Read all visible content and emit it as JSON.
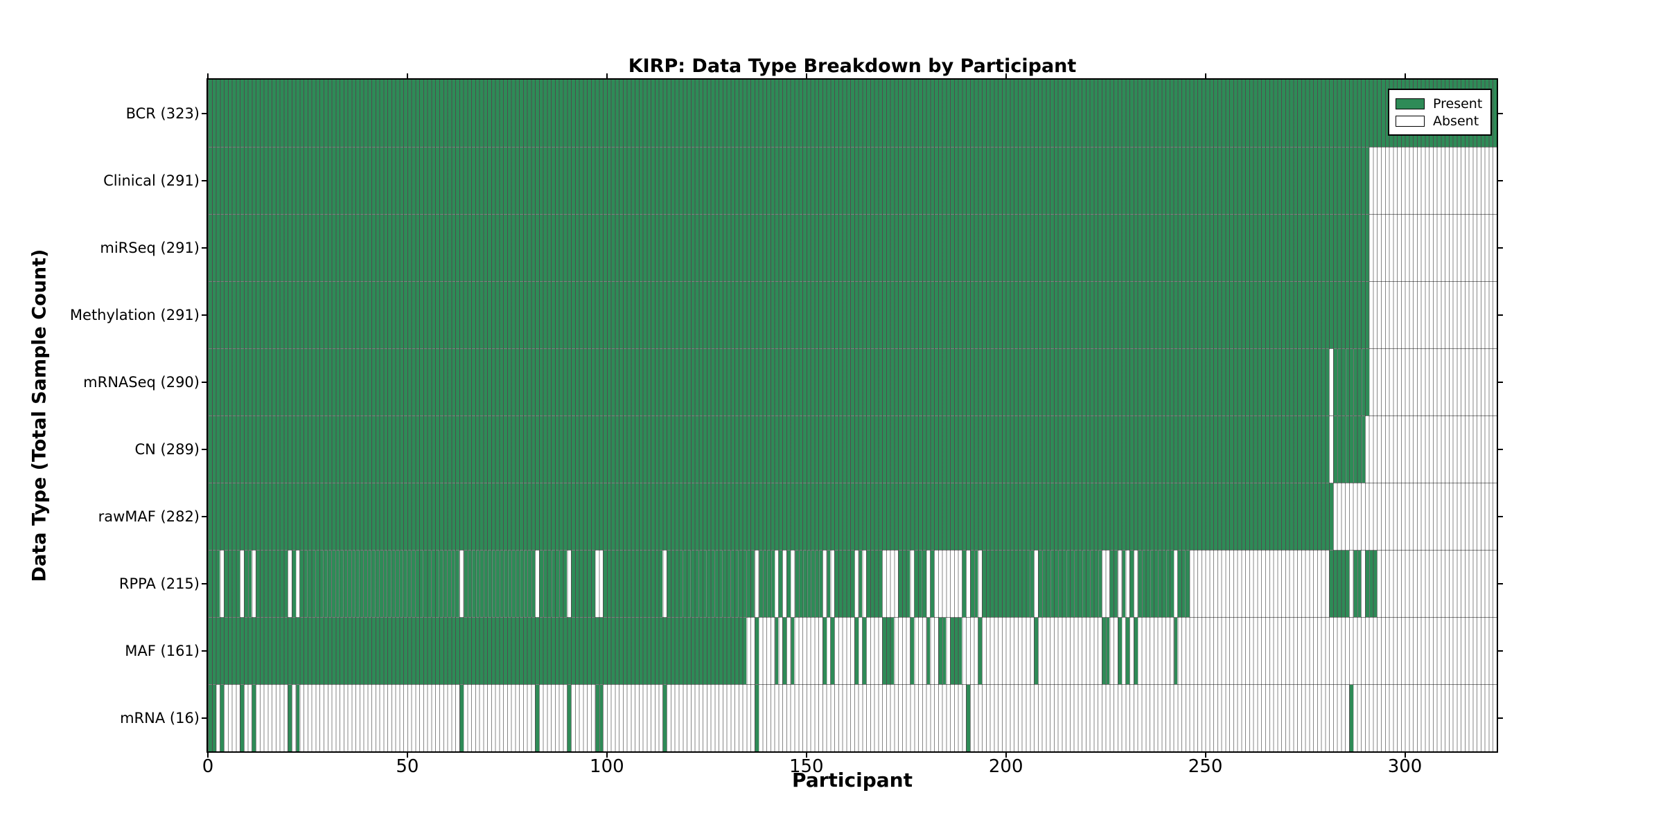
{
  "chart_data": {
    "type": "heatmap",
    "title": "KIRP: Data Type Breakdown by Participant",
    "xlabel": "Participant",
    "ylabel": "Data Type (Total Sample Count)",
    "x_max": 323,
    "x_ticks": [
      0,
      50,
      100,
      150,
      200,
      250,
      300
    ],
    "grid": "off",
    "legend_position": "top-right",
    "legend": [
      {
        "label": "Present",
        "color": "#2E8B57"
      },
      {
        "label": "Absent",
        "color": "#FFFFFF"
      }
    ],
    "colors": {
      "present": "#2E8B57",
      "present_edge": "rgba(0,0,0,0.42)",
      "absent": "#FFFFFF",
      "absent_edge": "#878787",
      "row_divider": "rgba(0,0,0,0.5)",
      "spine": "#000000"
    },
    "rows": [
      {
        "name": "BCR",
        "total": 323,
        "label": "BCR (323)",
        "present": [
          [
            0,
            323
          ]
        ]
      },
      {
        "name": "Clinical",
        "total": 291,
        "label": "Clinical (291)",
        "present": [
          [
            0,
            291
          ]
        ]
      },
      {
        "name": "miRSeq",
        "total": 291,
        "label": "miRSeq (291)",
        "present": [
          [
            0,
            291
          ]
        ]
      },
      {
        "name": "Methylation",
        "total": 291,
        "label": "Methylation (291)",
        "present": [
          [
            0,
            291
          ]
        ]
      },
      {
        "name": "mRNASeq",
        "total": 290,
        "label": "mRNASeq (290)",
        "present": [
          [
            0,
            281
          ],
          [
            282,
            291
          ]
        ]
      },
      {
        "name": "CN",
        "total": 289,
        "label": "CN (289)",
        "present": [
          [
            0,
            281
          ],
          [
            282,
            290
          ]
        ]
      },
      {
        "name": "rawMAF",
        "total": 282,
        "label": "rawMAF (282)",
        "present": [
          [
            0,
            282
          ]
        ]
      },
      {
        "name": "RPPA",
        "total": 215,
        "label": "RPPA (215)",
        "present": [
          [
            0,
            3
          ],
          [
            4,
            8
          ],
          [
            9,
            11
          ],
          [
            12,
            20
          ],
          [
            21,
            22
          ],
          [
            23,
            63
          ],
          [
            64,
            82
          ],
          [
            83,
            90
          ],
          [
            91,
            97
          ],
          [
            99,
            114
          ],
          [
            115,
            137
          ],
          [
            138,
            142
          ],
          [
            143,
            144
          ],
          [
            145,
            146
          ],
          [
            147,
            154
          ],
          [
            155,
            156
          ],
          [
            157,
            162
          ],
          [
            163,
            164
          ],
          [
            165,
            169
          ],
          [
            173,
            176
          ],
          [
            177,
            180
          ],
          [
            181,
            182
          ],
          [
            189,
            190
          ],
          [
            191,
            193
          ],
          [
            194,
            207
          ],
          [
            208,
            224
          ],
          [
            226,
            228
          ],
          [
            229,
            230
          ],
          [
            231,
            232
          ],
          [
            233,
            242
          ],
          [
            243,
            246
          ],
          [
            281,
            286
          ],
          [
            287,
            289
          ],
          [
            290,
            293
          ]
        ]
      },
      {
        "name": "MAF",
        "total": 161,
        "label": "MAF (161)",
        "present": [
          [
            0,
            135
          ],
          [
            137,
            138
          ],
          [
            142,
            143
          ],
          [
            144,
            145
          ],
          [
            146,
            147
          ],
          [
            154,
            155
          ],
          [
            156,
            157
          ],
          [
            162,
            163
          ],
          [
            164,
            165
          ],
          [
            169,
            172
          ],
          [
            176,
            177
          ],
          [
            180,
            181
          ],
          [
            183,
            185
          ],
          [
            186,
            189
          ],
          [
            193,
            194
          ],
          [
            207,
            208
          ],
          [
            224,
            226
          ],
          [
            228,
            229
          ],
          [
            230,
            231
          ],
          [
            232,
            233
          ],
          [
            242,
            243
          ]
        ]
      },
      {
        "name": "mRNA",
        "total": 16,
        "label": "mRNA (16)",
        "present": [
          [
            0,
            2
          ],
          [
            3,
            4
          ],
          [
            8,
            9
          ],
          [
            11,
            12
          ],
          [
            20,
            21
          ],
          [
            22,
            23
          ],
          [
            63,
            64
          ],
          [
            82,
            83
          ],
          [
            90,
            91
          ],
          [
            97,
            99
          ],
          [
            114,
            115
          ],
          [
            137,
            138
          ],
          [
            190,
            191
          ],
          [
            286,
            287
          ]
        ]
      }
    ]
  }
}
